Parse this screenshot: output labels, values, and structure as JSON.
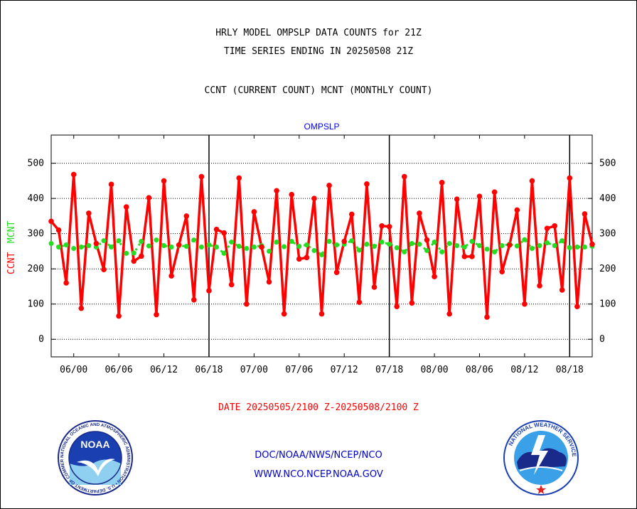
{
  "header": {
    "line1": "HRLY MODEL OMPSLP DATA COUNTS for 21Z",
    "line2": "TIME SERIES ENDING IN 20250508 21Z",
    "line3": "CCNT (CURRENT COUNT) MCNT (MONTHLY COUNT)"
  },
  "footer": {
    "date_range": "DATE 20250505/2100 Z-20250508/2100 Z",
    "org": "DOC/NOAA/NWS/NCEP/NCO",
    "url": "WWW.NCO.NCEP.NOAA.GOV"
  },
  "logos": {
    "noaa_text": "NOAA",
    "noaa_ring": "NATIONAL OCEANIC AND ATMOSPHERIC ADMINISTRATION • U.S. DEPARTMENT OF COMMERCE",
    "nws_ring": "NATIONAL WEATHER SERVICE"
  },
  "colors": {
    "ccnt": "#ff0000",
    "mcnt": "#22dd22",
    "title": "#0000ff",
    "footer_blue": "#0000cc",
    "footer_red": "#ff0000"
  },
  "chart_data": {
    "type": "line",
    "title": "OMPSLP",
    "ylabel_ccnt": "CCNT",
    "ylabel_mcnt": "MCNT",
    "ylim": [
      -50,
      580
    ],
    "yticks": [
      0,
      100,
      200,
      300,
      400,
      500
    ],
    "xticks": [
      "06/00",
      "06/06",
      "06/12",
      "06/18",
      "07/00",
      "07/06",
      "07/12",
      "07/18",
      "08/00",
      "08/06",
      "08/12",
      "08/18"
    ],
    "x_start_hour": 21,
    "x_end_hour": 93,
    "day_boundary_hours": [
      42,
      66,
      90
    ],
    "grid": true,
    "series": [
      {
        "name": "CCNT",
        "values": [
          335,
          310,
          160,
          468,
          88,
          358,
          272,
          198,
          440,
          66,
          376,
          222,
          236,
          402,
          70,
          450,
          180,
          268,
          350,
          112,
          462,
          138,
          312,
          302,
          155,
          458,
          100,
          362,
          262,
          163,
          422,
          72,
          411,
          228,
          232,
          400,
          72,
          437,
          190,
          278,
          355,
          105,
          441,
          148,
          322,
          320,
          93,
          462,
          103,
          358,
          282,
          178,
          445,
          72,
          398,
          235,
          235,
          406,
          63,
          418,
          192,
          268,
          367,
          100,
          450,
          152,
          315,
          322,
          140,
          458,
          93,
          356,
          270
        ]
      },
      {
        "name": "MCNT",
        "values": [
          272,
          262,
          268,
          258,
          262,
          266,
          262,
          280,
          262,
          280,
          244,
          245,
          278,
          265,
          282,
          266,
          262,
          266,
          264,
          282,
          262,
          268,
          262,
          244,
          276,
          264,
          258,
          262,
          266,
          250,
          276,
          263,
          278,
          264,
          268,
          252,
          240,
          278,
          268,
          270,
          280,
          253,
          270,
          264,
          276,
          270,
          260,
          248,
          272,
          270,
          252,
          276,
          248,
          272,
          266,
          262,
          278,
          266,
          256,
          248,
          266,
          270,
          265,
          283,
          258,
          266,
          274,
          266,
          280,
          260,
          262,
          262,
          264
        ]
      }
    ]
  }
}
